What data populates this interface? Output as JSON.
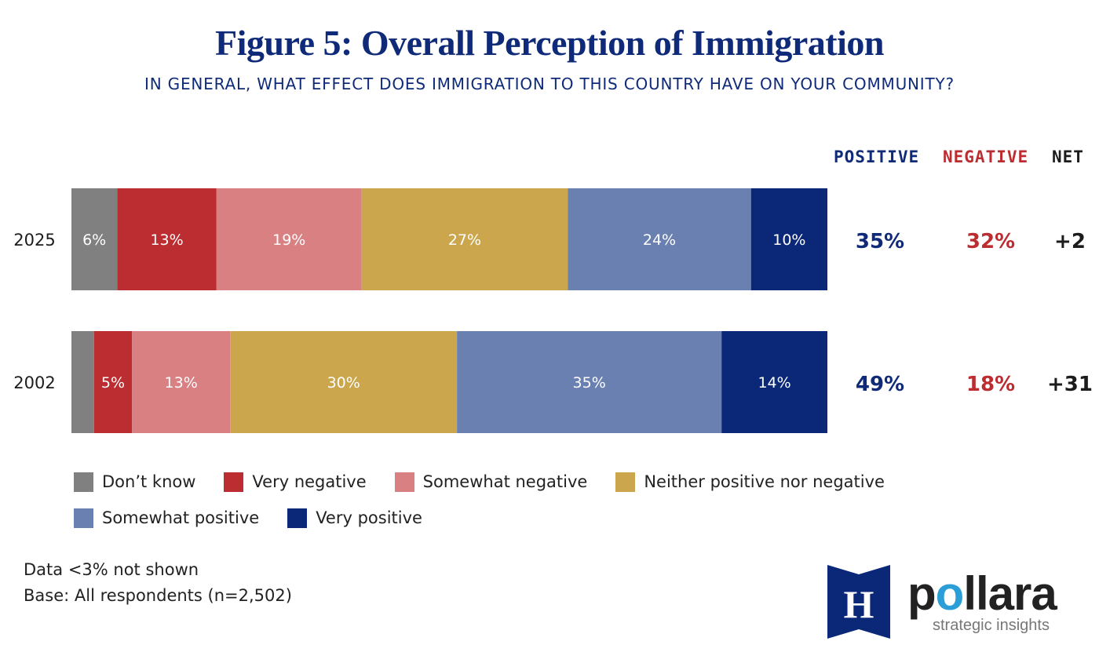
{
  "chart_data": {
    "type": "bar",
    "orientation": "horizontal-stacked-100",
    "title": "Figure 5: Overall Perception of Immigration",
    "subtitle": "IN GENERAL, WHAT EFFECT DOES IMMIGRATION TO THIS COUNTRY HAVE ON YOUR COMMUNITY?",
    "categories": [
      "2025",
      "2002"
    ],
    "series": [
      {
        "name": "Don’t know",
        "color": "#808080",
        "values": [
          6,
          3
        ],
        "labels": [
          "6%",
          ""
        ]
      },
      {
        "name": "Very negative",
        "color": "#bb2d31",
        "values": [
          13,
          5
        ],
        "labels": [
          "13%",
          "5%"
        ]
      },
      {
        "name": "Somewhat negative",
        "color": "#d98083",
        "values": [
          19,
          13
        ],
        "labels": [
          "19%",
          "13%"
        ]
      },
      {
        "name": "Neither positive nor negative",
        "color": "#cba64c",
        "values": [
          27,
          30
        ],
        "labels": [
          "27%",
          "30%"
        ]
      },
      {
        "name": "Somewhat positive",
        "color": "#6a80b0",
        "values": [
          24,
          35
        ],
        "labels": [
          "24%",
          "35%"
        ]
      },
      {
        "name": "Very positive",
        "color": "#0b2878",
        "values": [
          10,
          14
        ],
        "labels": [
          "10%",
          "14%"
        ]
      }
    ],
    "summary_columns": {
      "headers": {
        "positive": "POSITIVE",
        "negative": "NEGATIVE",
        "net": "NET"
      },
      "colors": {
        "positive": "#0f2a78",
        "negative": "#bb2d31",
        "net": "#1c1c1c"
      },
      "rows": [
        {
          "positive": "35%",
          "negative": "32%",
          "net": "+2"
        },
        {
          "positive": "49%",
          "negative": "18%",
          "net": "+31"
        }
      ]
    },
    "legend_position": "bottom-left"
  },
  "footnotes": {
    "line1": "Data <3% not shown",
    "line2": "Base: All respondents (n=2,502)"
  },
  "logo": {
    "emblem_letter": "H",
    "word_start": "p",
    "word_accent": "o",
    "word_end": "llara",
    "tagline": "strategic insights",
    "brand_color": "#0b2878",
    "accent_color": "#2b9ed8"
  }
}
